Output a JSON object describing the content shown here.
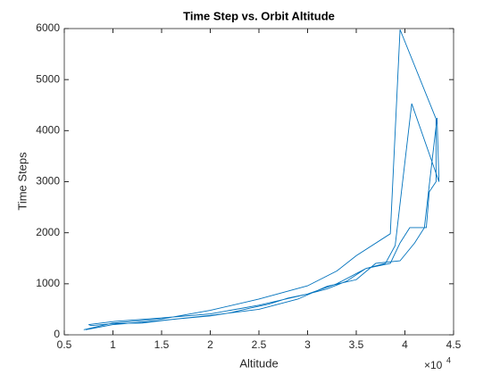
{
  "chart_data": {
    "type": "line",
    "title": "Time Step vs. Orbit Altitude",
    "xlabel": "Altitude",
    "ylabel": "Time Steps",
    "x_multiplier": {
      "base": "×10",
      "exponent": "4"
    },
    "x": [
      0.7,
      1.0,
      1.5,
      2.0,
      2.5,
      3.0,
      3.3,
      3.5,
      3.85,
      3.95,
      4.32,
      4.32,
      4.25,
      4.22,
      4.05,
      3.95,
      3.85,
      3.6,
      3.4,
      3.2,
      3.0,
      2.8,
      2.6,
      2.4,
      2.2,
      2.0,
      1.6,
      1.3,
      1.0,
      0.78,
      0.75,
      1.0,
      1.5,
      2.0,
      2.5,
      3.0,
      3.3,
      3.6,
      3.8,
      3.9,
      4.07,
      4.35,
      4.33,
      4.2,
      4.1,
      3.95,
      3.7,
      3.5,
      3.2,
      2.9,
      2.5,
      2.0,
      1.5,
      1.0,
      0.72
    ],
    "series": [
      {
        "color": "#0072bd",
        "values": [
          100,
          230,
          310,
          480,
          700,
          960,
          1250,
          1550,
          1980,
          5980,
          4230,
          3000,
          2800,
          2100,
          2100,
          1800,
          1400,
          1300,
          1050,
          900,
          800,
          720,
          600,
          520,
          430,
          370,
          300,
          230,
          220,
          180,
          200,
          260,
          330,
          410,
          580,
          800,
          1000,
          1300,
          1400,
          1750,
          4530,
          3000,
          4250,
          2100,
          1800,
          1450,
          1400,
          1080,
          950,
          700,
          500,
          380,
          280,
          200,
          100
        ]
      }
    ],
    "xlim": [
      0.5,
      4.5
    ],
    "xticks": [
      0.5,
      1,
      1.5,
      2,
      2.5,
      3,
      3.5,
      4,
      4.5
    ],
    "ylim": [
      0,
      6000
    ],
    "yticks": [
      0,
      1000,
      2000,
      3000,
      4000,
      5000,
      6000
    ]
  }
}
